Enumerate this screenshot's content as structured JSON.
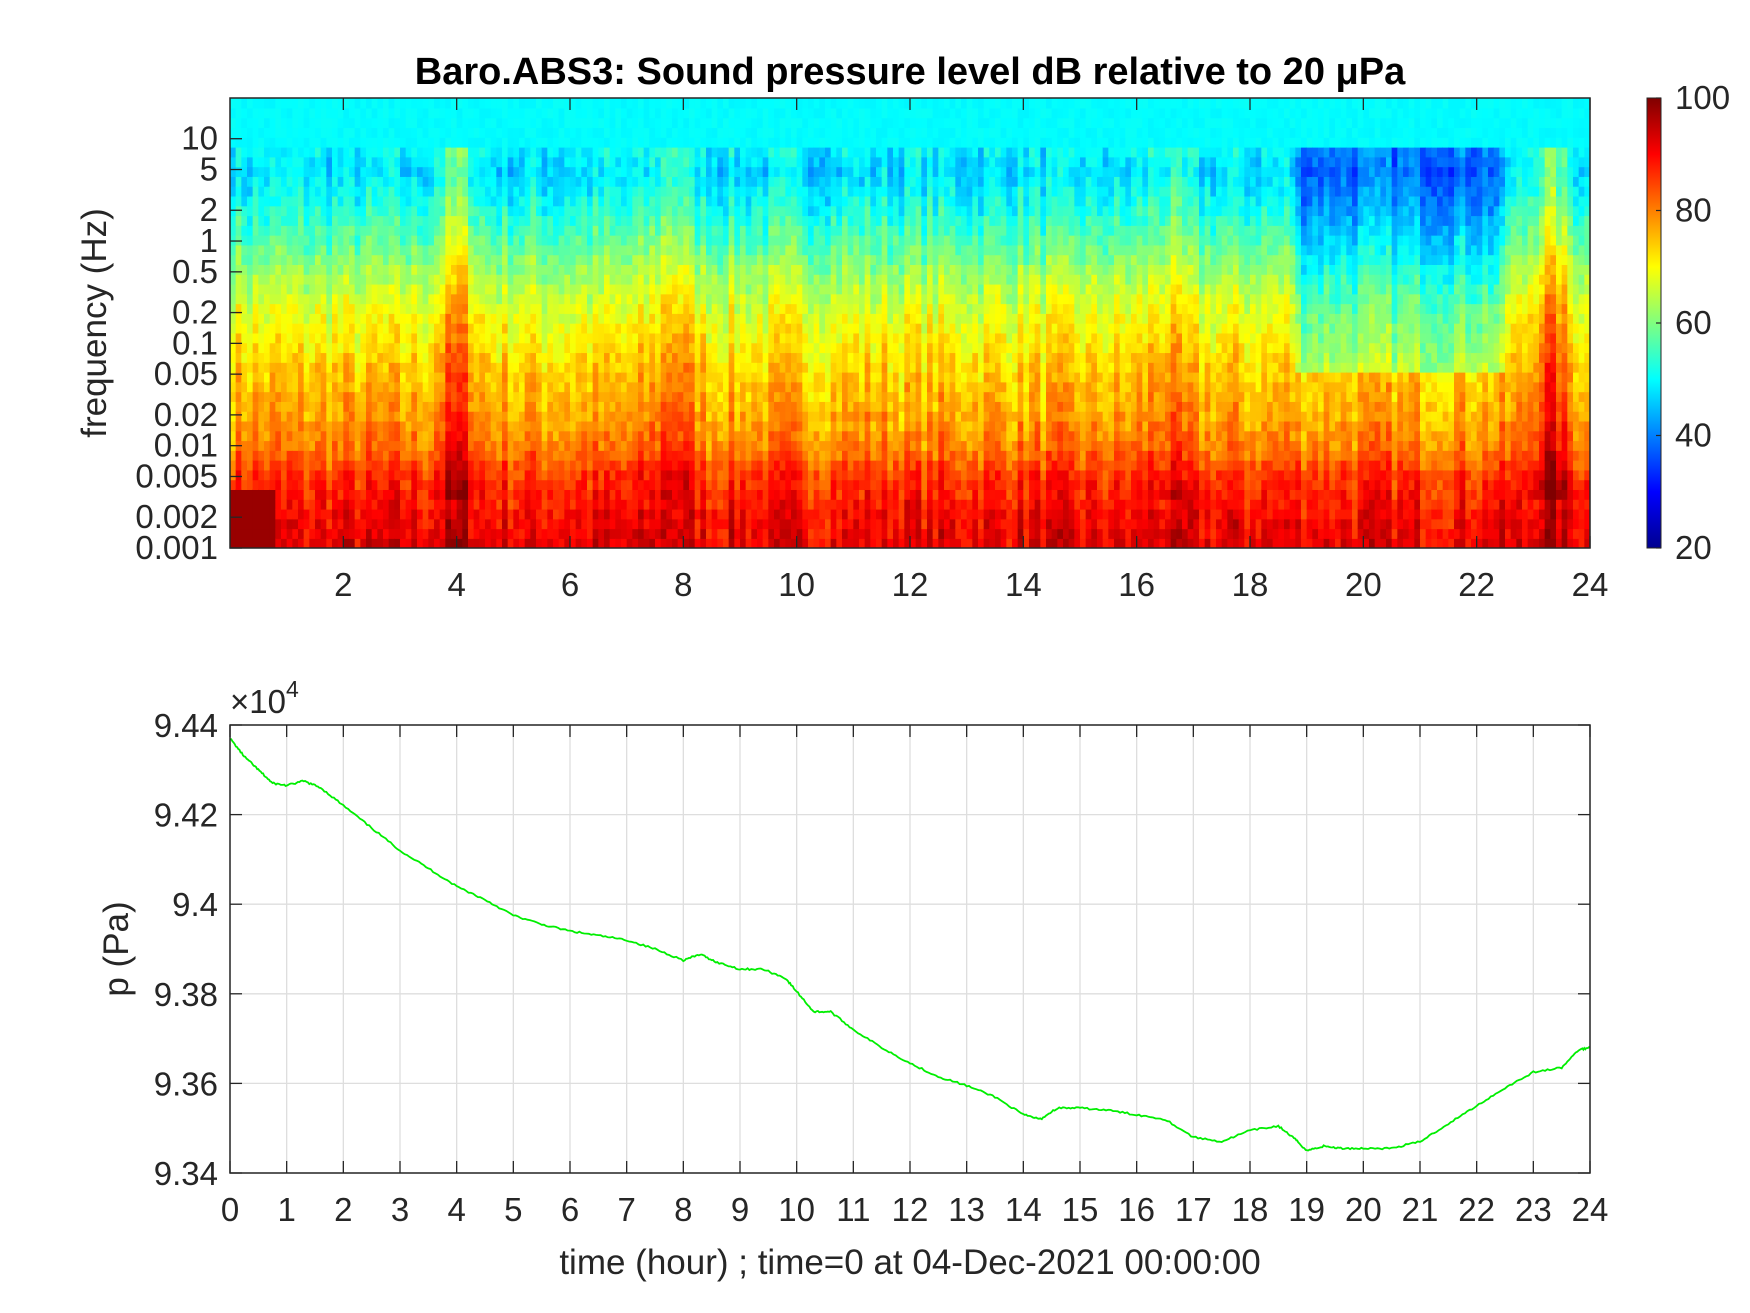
{
  "chart_data": [
    {
      "type": "heatmap",
      "title": "Baro.ABS3: Sound pressure level dB relative to 20 μPa",
      "ylabel": "frequency (Hz)",
      "xlabel": "",
      "x_range": [
        0,
        24
      ],
      "x_ticks": [
        "2",
        "4",
        "6",
        "8",
        "10",
        "12",
        "14",
        "16",
        "18",
        "20",
        "22",
        "24"
      ],
      "y_scale": "log",
      "y_range": [
        0.001,
        25
      ],
      "y_ticks": [
        "0.001",
        "0.002",
        "0.005",
        "0.01",
        "0.02",
        "0.05",
        "0.1",
        "0.2",
        "0.5",
        "1",
        "2",
        "5",
        "10"
      ],
      "colormap": "jet",
      "colorbar": {
        "range": [
          20,
          100
        ],
        "ticks": [
          "20",
          "40",
          "60",
          "80",
          "100"
        ]
      },
      "grid": false,
      "level_profile_db": {
        "freq_hz": [
          0.001,
          0.002,
          0.005,
          0.01,
          0.02,
          0.05,
          0.1,
          0.2,
          0.5,
          1,
          2,
          5,
          10,
          25
        ],
        "spl_db": [
          92,
          90,
          86,
          80,
          77,
          74,
          71,
          68,
          62,
          57,
          52,
          47,
          51,
          51
        ]
      },
      "events": [
        {
          "hour": 4.0,
          "note": "broadband peak",
          "extra_db": 10
        },
        {
          "hour": 7.8,
          "note": "broadband peak",
          "extra_db": 7
        },
        {
          "hour": 16.5,
          "note": "raised level",
          "extra_db": 4
        },
        {
          "hour": 23.3,
          "note": "raised level",
          "extra_db": 12
        }
      ],
      "quiet_hours": [
        18.8,
        22.5
      ]
    },
    {
      "type": "line",
      "title": "",
      "xlabel": "time (hour) ; time=0 at 04-Dec-2021 00:00:00",
      "ylabel": "p (Pa)",
      "y_multiplier": "×10",
      "y_multiplier_exp": "4",
      "xlim": [
        0,
        24
      ],
      "ylim": [
        93400,
        94400
      ],
      "x_ticks": [
        "0",
        "1",
        "2",
        "3",
        "4",
        "5",
        "6",
        "7",
        "8",
        "9",
        "10",
        "11",
        "12",
        "13",
        "14",
        "15",
        "16",
        "17",
        "18",
        "19",
        "20",
        "21",
        "22",
        "23",
        "24"
      ],
      "y_ticks": [
        {
          "value": 93400,
          "label": "9.34"
        },
        {
          "value": 93600,
          "label": "9.36"
        },
        {
          "value": 93800,
          "label": "9.38"
        },
        {
          "value": 94000,
          "label": "9.4"
        },
        {
          "value": 94200,
          "label": "9.42"
        },
        {
          "value": 94400,
          "label": "9.44"
        }
      ],
      "grid": true,
      "series": [
        {
          "color": "#00ee00",
          "x": [
            0,
            0.25,
            0.5,
            0.75,
            1.0,
            1.3,
            1.6,
            2.0,
            2.5,
            3.0,
            3.5,
            4.0,
            4.5,
            5.0,
            5.5,
            6.0,
            6.5,
            7.0,
            7.5,
            8.0,
            8.3,
            8.6,
            9.0,
            9.4,
            9.8,
            10.0,
            10.3,
            10.6,
            11.0,
            11.5,
            12.0,
            12.5,
            13.0,
            13.5,
            14.0,
            14.3,
            14.6,
            15.0,
            15.5,
            16.0,
            16.5,
            17.0,
            17.5,
            18.0,
            18.5,
            18.8,
            19.0,
            19.3,
            19.6,
            20.0,
            20.5,
            21.0,
            21.5,
            22.0,
            22.5,
            23.0,
            23.5,
            23.8,
            24.0
          ],
          "y": [
            94370,
            94330,
            94300,
            94270,
            94265,
            94275,
            94260,
            94220,
            94170,
            94120,
            94080,
            94040,
            94010,
            93975,
            93955,
            93940,
            93930,
            93920,
            93900,
            93875,
            93888,
            93870,
            93855,
            93855,
            93835,
            93805,
            93760,
            93760,
            93720,
            93680,
            93645,
            93615,
            93595,
            93570,
            93530,
            93520,
            93545,
            93545,
            93540,
            93530,
            93520,
            93480,
            93470,
            93495,
            93505,
            93475,
            93450,
            93460,
            93455,
            93455,
            93455,
            93470,
            93510,
            93550,
            93590,
            93625,
            93635,
            93675,
            93680
          ]
        }
      ]
    }
  ]
}
